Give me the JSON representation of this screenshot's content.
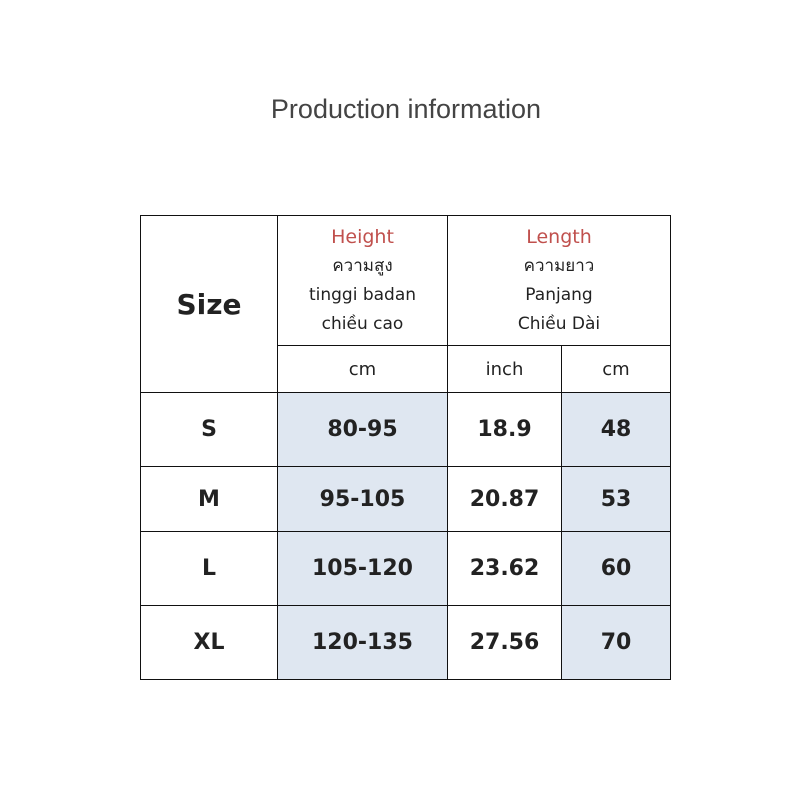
{
  "title": "Production information",
  "table": {
    "header": {
      "size": "Size",
      "height": [
        "Height",
        "ความสูง",
        "tinggi badan",
        "chiều cao"
      ],
      "length": [
        "Length",
        "ความยาว",
        "Panjang",
        "Chiều Dài"
      ]
    },
    "units": [
      "cm",
      "inch",
      "cm"
    ],
    "rows": [
      [
        "S",
        "80-95",
        "18.9",
        "48"
      ],
      [
        "M",
        "95-105",
        "20.87",
        "53"
      ],
      [
        "L",
        "105-120",
        "23.62",
        "60"
      ],
      [
        "XL",
        "120-135",
        "27.56",
        "70"
      ]
    ]
  }
}
